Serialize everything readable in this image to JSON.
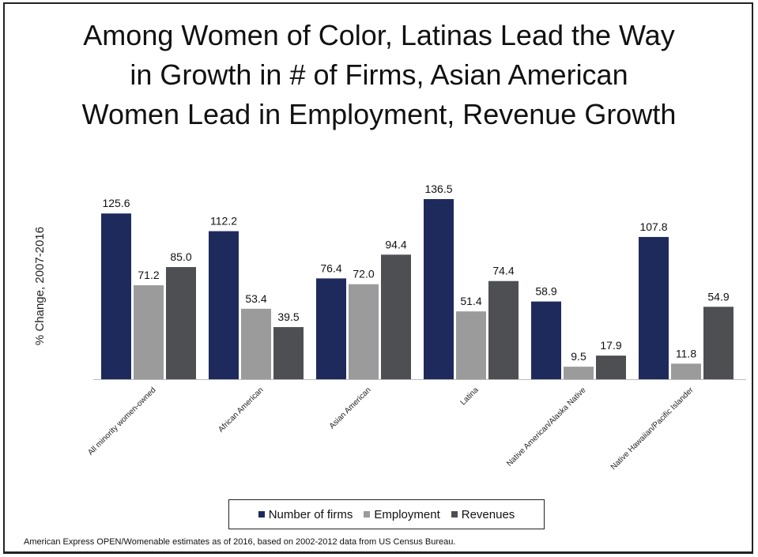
{
  "title_lines": [
    "Among Women of Color, Latinas Lead the Way",
    "in Growth in # of Firms, Asian American",
    "Women Lead in Employment, Revenue Growth"
  ],
  "source": "American Express OPEN/Womenable estimates as of 2016, based on 2002-2012 data from US Census Bureau.",
  "chart_data": {
    "type": "bar",
    "title": "Among Women of Color, Latinas Lead the Way in Growth in # of Firms, Asian American Women Lead in Employment, Revenue Growth",
    "ylabel": "% Change, 2007-2016",
    "xlabel": "",
    "ylim": [
      0,
      140
    ],
    "grid": false,
    "legend_position": "bottom",
    "categories": [
      "All minority women-owned",
      "African American",
      "Asian American",
      "Latina",
      "Native American/Alaska Native",
      "Native Hawaiian/Pacific Islander"
    ],
    "series": [
      {
        "name": "Number of firms",
        "color": "#1f2a5c",
        "values": [
          125.6,
          112.2,
          76.4,
          136.5,
          58.9,
          107.8
        ]
      },
      {
        "name": "Employment",
        "color": "#9b9b9b",
        "values": [
          71.2,
          53.4,
          72.0,
          51.4,
          9.5,
          11.8
        ]
      },
      {
        "name": "Revenues",
        "color": "#4d4f53",
        "values": [
          85.0,
          39.5,
          94.4,
          74.4,
          17.9,
          54.9
        ]
      }
    ]
  }
}
